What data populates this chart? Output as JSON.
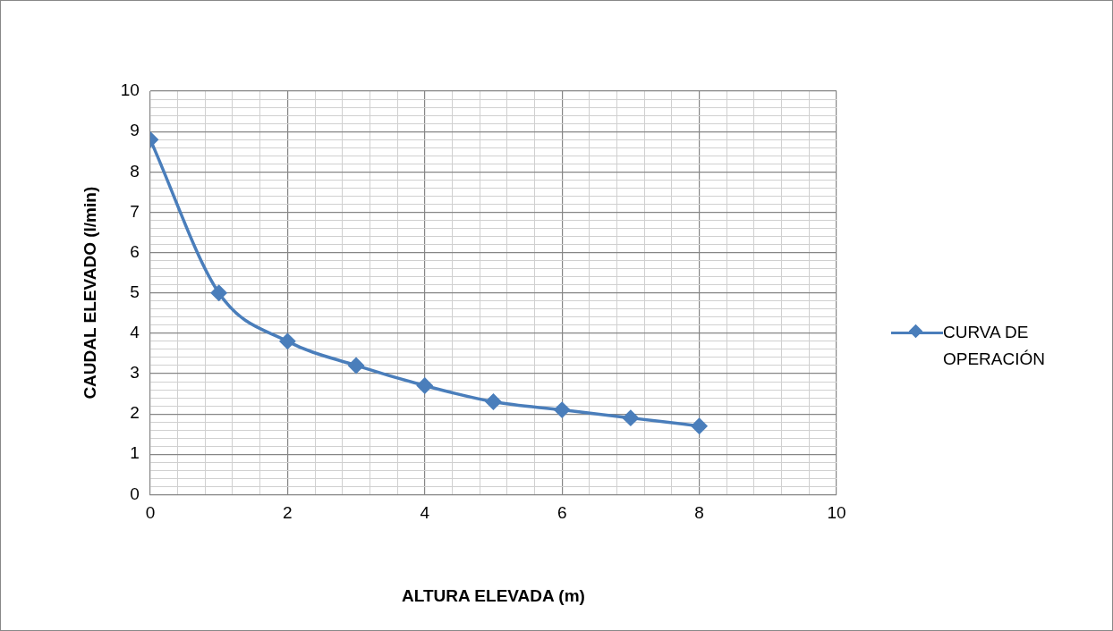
{
  "chart_data": {
    "type": "line",
    "xlabel": "ALTURA ELEVADA (m)",
    "ylabel": "CAUDAL ELEVADO (l/min)",
    "x": [
      0,
      1,
      2,
      3,
      4,
      5,
      6,
      7,
      8
    ],
    "series": [
      {
        "name": "CURVA DE OPERACIÓN",
        "color": "#4a7ebb",
        "values": [
          8.8,
          5.0,
          3.8,
          3.2,
          2.7,
          2.3,
          2.1,
          1.9,
          1.7
        ]
      }
    ],
    "xlim": [
      0,
      10
    ],
    "xticks": [
      0,
      {
        "value": 0.4,
        "label": null
      },
      {
        "value": 0.8,
        "label": null
      },
      {
        "value": 1.2,
        "label": null
      },
      {
        "value": 1.6,
        "label": null
      },
      2,
      {
        "value": 2.4,
        "label": null
      },
      {
        "value": 2.8,
        "label": null
      },
      {
        "value": 3.2,
        "label": null
      },
      {
        "value": 3.6,
        "label": null
      },
      4,
      {
        "value": 4.4,
        "label": null
      },
      {
        "value": 4.8,
        "label": null
      },
      {
        "value": 5.2,
        "label": null
      },
      {
        "value": 5.6,
        "label": null
      },
      6,
      {
        "value": 6.4,
        "label": null
      },
      {
        "value": 6.8,
        "label": null
      },
      {
        "value": 7.2,
        "label": null
      },
      {
        "value": 7.6,
        "label": null
      },
      8,
      {
        "value": 8.4,
        "label": null
      },
      {
        "value": 8.8,
        "label": null
      },
      {
        "value": 9.2,
        "label": null
      },
      {
        "value": 9.6,
        "label": null
      },
      10
    ],
    "ylim": [
      0,
      10
    ],
    "yticks": [
      0,
      {
        "value": 0.2,
        "label": null
      },
      {
        "value": 0.4,
        "label": null
      },
      {
        "value": 0.6,
        "label": null
      },
      {
        "value": 0.8,
        "label": null
      },
      1,
      {
        "value": 1.2,
        "label": null
      },
      {
        "value": 1.4,
        "label": null
      },
      {
        "value": 1.6,
        "label": null
      },
      {
        "value": 1.8,
        "label": null
      },
      2,
      {
        "value": 2.2,
        "label": null
      },
      {
        "value": 2.4,
        "label": null
      },
      {
        "value": 2.6,
        "label": null
      },
      {
        "value": 2.8,
        "label": null
      },
      3,
      {
        "value": 3.2,
        "label": null
      },
      {
        "value": 3.4,
        "label": null
      },
      {
        "value": 3.6,
        "label": null
      },
      {
        "value": 3.8,
        "label": null
      },
      4,
      {
        "value": 4.2,
        "label": null
      },
      {
        "value": 4.4,
        "label": null
      },
      {
        "value": 4.6,
        "label": null
      },
      {
        "value": 4.8,
        "label": null
      },
      5,
      {
        "value": 5.2,
        "label": null
      },
      {
        "value": 5.4,
        "label": null
      },
      {
        "value": 5.6,
        "label": null
      },
      {
        "value": 5.8,
        "label": null
      },
      6,
      {
        "value": 6.2,
        "label": null
      },
      {
        "value": 6.4,
        "label": null
      },
      {
        "value": 6.6,
        "label": null
      },
      {
        "value": 6.8,
        "label": null
      },
      7,
      {
        "value": 7.2,
        "label": null
      },
      {
        "value": 7.4,
        "label": null
      },
      {
        "value": 7.6,
        "label": null
      },
      {
        "value": 7.8,
        "label": null
      },
      8,
      {
        "value": 8.2,
        "label": null
      },
      {
        "value": 8.4,
        "label": null
      },
      {
        "value": 8.6,
        "label": null
      },
      {
        "value": 8.8,
        "label": null
      },
      9,
      {
        "value": 9.2,
        "label": null
      },
      {
        "value": 9.4,
        "label": null
      },
      {
        "value": 9.6,
        "label": null
      },
      {
        "value": 9.8,
        "label": null
      },
      10
    ],
    "grid": true,
    "legend": "right",
    "marker": "diamond",
    "line_style": "solid"
  }
}
